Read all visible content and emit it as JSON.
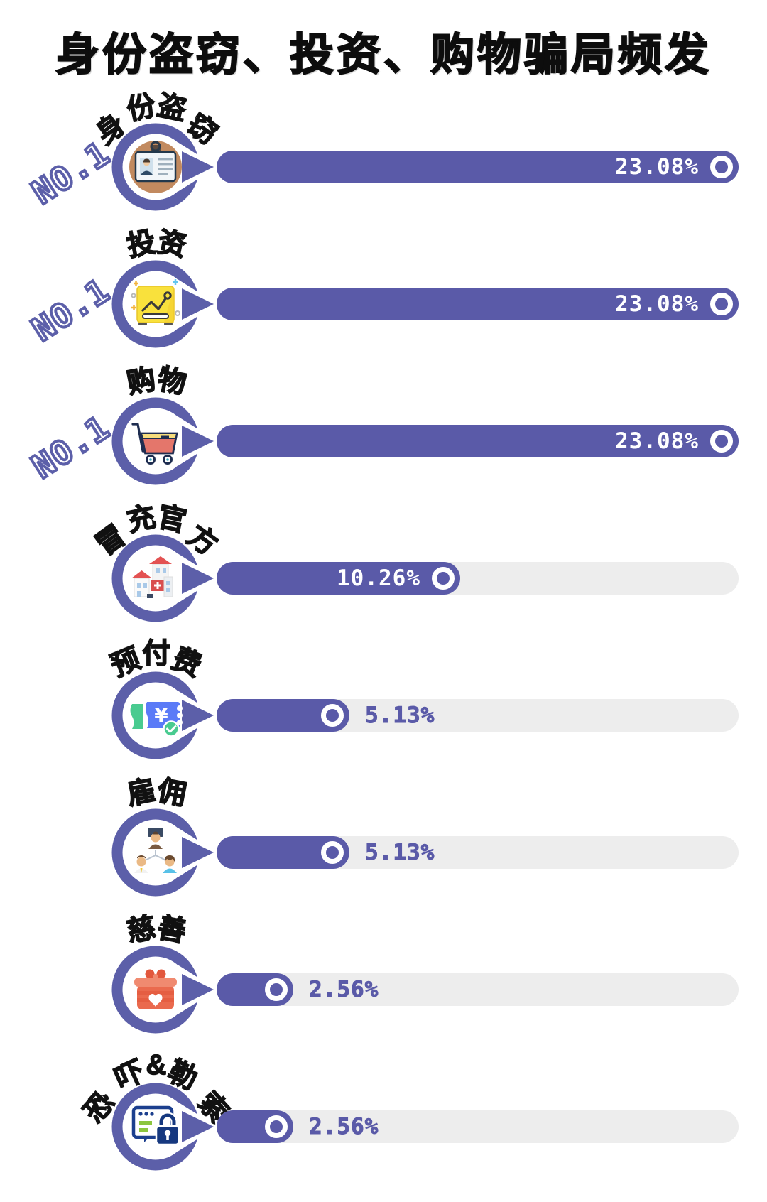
{
  "title": "身份盗窃、投资、购物骗局频发",
  "colors": {
    "bar_purple": "#5a5aa8",
    "track_gray": "#ededed",
    "rank_outline": "#5c5fa9",
    "title_black": "#0d0d0d",
    "label_black": "#111111"
  },
  "rows": [
    {
      "label": "身份盗窃",
      "rank": "NO.1",
      "percent": "23.08%",
      "value": 23.08,
      "icon": "id-card-icon"
    },
    {
      "label": "投资",
      "rank": "NO.1",
      "percent": "23.08%",
      "value": 23.08,
      "icon": "investment-chart-icon"
    },
    {
      "label": "购物",
      "rank": "NO.1",
      "percent": "23.08%",
      "value": 23.08,
      "icon": "shopping-cart-icon"
    },
    {
      "label": "冒充官方",
      "rank": "",
      "percent": "10.26%",
      "value": 10.26,
      "icon": "official-buildings-icon"
    },
    {
      "label": "预付费",
      "rank": "",
      "percent": "5.13%",
      "value": 5.13,
      "icon": "prepaid-ticket-icon"
    },
    {
      "label": "雇佣",
      "rank": "",
      "percent": "5.13%",
      "value": 5.13,
      "icon": "employment-people-icon"
    },
    {
      "label": "慈善",
      "rank": "",
      "percent": "2.56%",
      "value": 2.56,
      "icon": "charity-gift-icon"
    },
    {
      "label": "恐吓&勒索",
      "rank": "",
      "percent": "2.56%",
      "value": 2.56,
      "icon": "threat-ransom-icon"
    }
  ],
  "chart_data": {
    "type": "bar",
    "orientation": "horizontal",
    "title": "身份盗窃、投资、购物骗局频发",
    "categories": [
      "身份盗窃",
      "投资",
      "购物",
      "冒充官方",
      "预付费",
      "雇佣",
      "慈善",
      "恐吓&勒索"
    ],
    "values": [
      23.08,
      23.08,
      23.08,
      10.26,
      5.13,
      5.13,
      2.56,
      2.56
    ],
    "value_labels": [
      "23.08%",
      "23.08%",
      "23.08%",
      "10.26%",
      "5.13%",
      "5.13%",
      "2.56%",
      "2.56%"
    ],
    "ranks": [
      "NO.1",
      "NO.1",
      "NO.1",
      "",
      "",
      "",
      "",
      ""
    ],
    "xlim": [
      0,
      23.08
    ],
    "unit": "%",
    "grid": false,
    "legend": false
  }
}
